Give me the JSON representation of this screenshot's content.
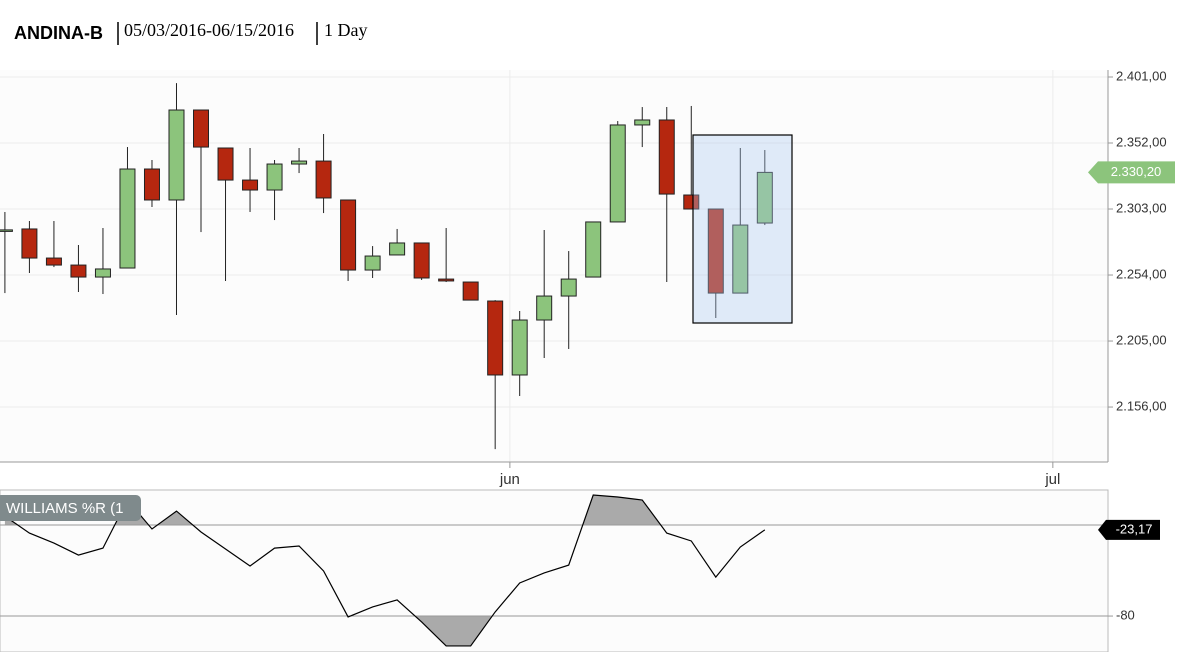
{
  "chart_data": [
    {
      "type": "candlestick",
      "title": "ANDINA-B",
      "date_range": "05/03/2016-06/15/2016",
      "interval": "1 Day",
      "categories": [
        null,
        null,
        null,
        null,
        null,
        null,
        null,
        null,
        null,
        null,
        null,
        null,
        null,
        null,
        null,
        null,
        null,
        null,
        null,
        null,
        null,
        null,
        null,
        null,
        null,
        null,
        null,
        null,
        null,
        null,
        null,
        null
      ],
      "open": [
        2286.5,
        2288.2,
        2266.6,
        2261.4,
        2252.5,
        2259.2,
        2332.7,
        2309.7,
        2376.5,
        2348.3,
        2324.5,
        2317.1,
        2336.4,
        2338.6,
        2309.7,
        2257.7,
        2268.9,
        2277.8,
        2251.0,
        2248.8,
        2234.7,
        2179.8,
        2220.6,
        2238.4,
        2252.5,
        2293.4,
        2365.4,
        2369.1,
        2313.4,
        2303.0,
        2240.6,
        2292.6
      ],
      "high": [
        2300.8,
        2294.1,
        2294.1,
        2276.3,
        2288.9,
        2349.0,
        2339.4,
        2396.5,
        2376.5,
        2348.3,
        2348.3,
        2339.4,
        2348.3,
        2358.7,
        2309.7,
        2275.5,
        2288.2,
        2277.8,
        2288.9,
        2248.8,
        2235.4,
        2227.3,
        2287.4,
        2271.8,
        2293.4,
        2368.3,
        2378.7,
        2378.7,
        2379.5,
        2303.0,
        2348.3,
        2346.8
      ],
      "low": [
        2240.6,
        2255.5,
        2259.9,
        2241.4,
        2239.9,
        2259.2,
        2304.5,
        2224.3,
        2285.9,
        2249.6,
        2300.8,
        2294.8,
        2329.7,
        2300.0,
        2249.6,
        2251.8,
        2268.9,
        2250.3,
        2248.8,
        2235.4,
        2124.8,
        2164.2,
        2192.4,
        2199.1,
        2252.5,
        2293.4,
        2349.0,
        2248.8,
        2303.0,
        2222.1,
        2240.6,
        2291.1
      ],
      "close": [
        2287.5,
        2266.6,
        2261.4,
        2252.5,
        2258.5,
        2332.7,
        2309.7,
        2376.5,
        2349.0,
        2324.5,
        2317.1,
        2336.4,
        2338.6,
        2311.2,
        2257.7,
        2268.1,
        2277.8,
        2251.8,
        2249.6,
        2235.4,
        2179.8,
        2220.6,
        2238.4,
        2251.0,
        2293.4,
        2365.4,
        2369.1,
        2314.1,
        2303.0,
        2240.6,
        2291.1,
        2330.2
      ],
      "up_color": "#8cc47c",
      "down_color": "#b5270f",
      "xlim": [
        -0.2,
        45
      ],
      "xticks": [
        {
          "value": 20.6,
          "label": "jun"
        },
        {
          "value": 42.75,
          "label": "jul"
        }
      ],
      "ylim": [
        2115.2,
        2406.2
      ],
      "yticks": [
        {
          "value": 2401,
          "label": "2.401,00"
        },
        {
          "value": 2352,
          "label": "2.352,00"
        },
        {
          "value": 2303,
          "label": "2.303,00"
        },
        {
          "value": 2254,
          "label": "2.254,00"
        },
        {
          "value": 2205,
          "label": "2.205,00"
        },
        {
          "value": 2156,
          "label": "2.156,00"
        }
      ],
      "grid": true,
      "last_value": {
        "value": 2330.2,
        "label": "2.330,20"
      }
    },
    {
      "type": "line",
      "title": "WILLIAMS %R (1",
      "values": [
        -14.1,
        -25.3,
        -31.9,
        -39.8,
        -35.2,
        -3.5,
        -22.6,
        -10.8,
        -24.6,
        -35.8,
        -47.0,
        -35.2,
        -33.8,
        -50.3,
        -80.6,
        -74.0,
        -69.4,
        -83.9,
        -99.7,
        -99.7,
        -77.3,
        -58.2,
        -51.6,
        -46.4,
        -0.2,
        -1.5,
        -3.5,
        -25.3,
        -30.5,
        -54.3,
        -34.5,
        -23.17
      ],
      "color": "#000000",
      "level_fill": "#aaaaaa",
      "levels": [
        -20,
        -80
      ],
      "ylim": [
        -103.7,
        3.1
      ],
      "yticks": [
        -80
      ],
      "last_value": {
        "value": -23.17,
        "label": "-23,17"
      }
    }
  ]
}
